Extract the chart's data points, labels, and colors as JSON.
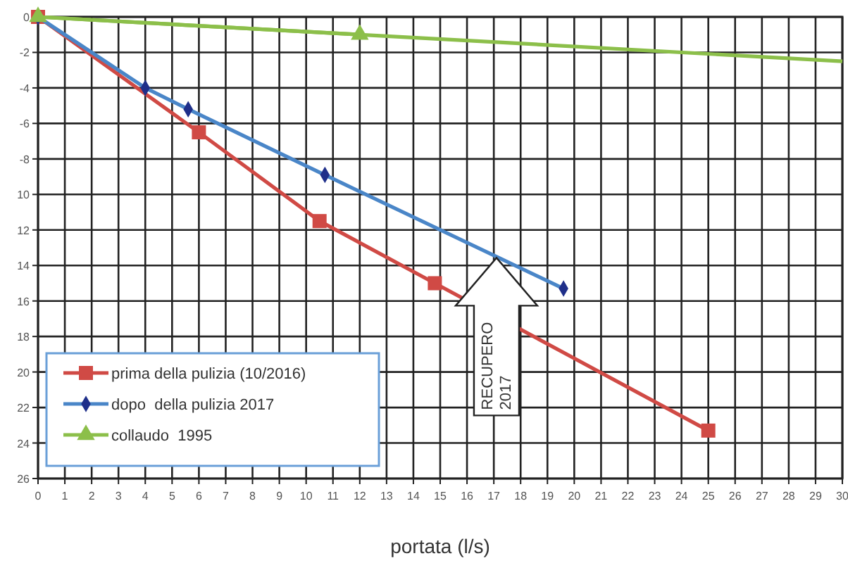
{
  "chart_data": {
    "type": "line",
    "xlabel": "portata (l/s)",
    "xlim": [
      0,
      30
    ],
    "xticks": [
      0,
      1,
      2,
      3,
      4,
      5,
      6,
      7,
      8,
      9,
      10,
      11,
      12,
      13,
      14,
      15,
      16,
      17,
      18,
      19,
      20,
      21,
      22,
      23,
      24,
      25,
      26,
      27,
      28,
      29,
      30
    ],
    "ylim": [
      -26,
      0
    ],
    "yticks": [
      0,
      -2,
      -4,
      -6,
      -8,
      {
        "value": -10,
        "label": "10"
      },
      {
        "value": -12,
        "label": "12"
      },
      {
        "value": -14,
        "label": "14"
      },
      {
        "value": -16,
        "label": "16"
      },
      {
        "value": -18,
        "label": "18"
      },
      {
        "value": -20,
        "label": "20"
      },
      {
        "value": -22,
        "label": "22"
      },
      {
        "value": -24,
        "label": "24"
      },
      {
        "value": -26,
        "label": "26"
      }
    ],
    "grid": true,
    "legend": "bottom left",
    "series": [
      {
        "name": "prima della pulizia (10/2016)",
        "color": "#d04a45",
        "marker": "square",
        "x": [
          0,
          6,
          10.5,
          14.8,
          25
        ],
        "values": [
          0,
          -6.5,
          -11.5,
          -15,
          -23.3
        ]
      },
      {
        "name": "dopo  della pulizia 2017",
        "color": "#4a86c8",
        "marker": "diamond",
        "x": [
          0,
          4,
          5.6,
          10.7,
          19.6
        ],
        "values": [
          0,
          -4,
          -5.2,
          -8.9,
          -15.3
        ]
      },
      {
        "name": "collaudo  1995",
        "color": "#8cbf4a",
        "marker": "triangle",
        "x": [
          0,
          12
        ],
        "values": [
          0,
          -1
        ]
      },
      {
        "color": "#8cbf4a",
        "marker": "none",
        "x": [
          0,
          30
        ],
        "values": [
          0,
          -2.5
        ]
      }
    ],
    "annotations": [
      {
        "text": "RECUPERO 2017",
        "x": 17.1,
        "y": -16.9
      }
    ]
  }
}
